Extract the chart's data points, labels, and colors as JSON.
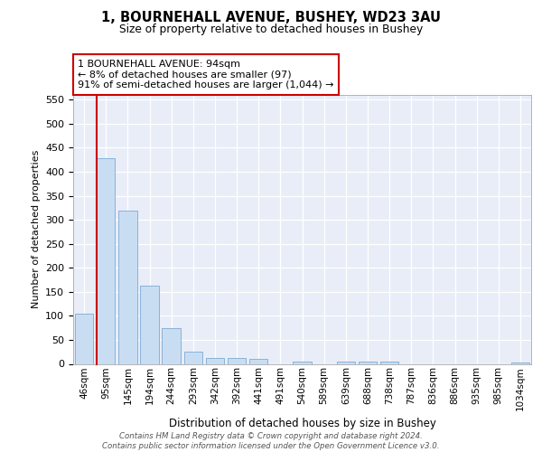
{
  "title_line1": "1, BOURNEHALL AVENUE, BUSHEY, WD23 3AU",
  "title_line2": "Size of property relative to detached houses in Bushey",
  "xlabel": "Distribution of detached houses by size in Bushey",
  "ylabel": "Number of detached properties",
  "categories": [
    "46sqm",
    "95sqm",
    "145sqm",
    "194sqm",
    "244sqm",
    "293sqm",
    "342sqm",
    "392sqm",
    "441sqm",
    "491sqm",
    "540sqm",
    "589sqm",
    "639sqm",
    "688sqm",
    "738sqm",
    "787sqm",
    "836sqm",
    "886sqm",
    "935sqm",
    "985sqm",
    "1034sqm"
  ],
  "values": [
    105,
    428,
    320,
    163,
    75,
    25,
    12,
    13,
    10,
    0,
    5,
    0,
    5,
    5,
    5,
    0,
    0,
    0,
    0,
    0,
    3
  ],
  "bar_color": "#c9ddf2",
  "bar_edge_color": "#7baad4",
  "highlight_bar_index": 1,
  "highlight_line_color": "#cc0000",
  "annotation_line1": "1 BOURNEHALL AVENUE: 94sqm",
  "annotation_line2": "← 8% of detached houses are smaller (97)",
  "annotation_line3": "91% of semi-detached houses are larger (1,044) →",
  "annotation_box_facecolor": "#ffffff",
  "annotation_box_edgecolor": "#cc0000",
  "ylim_max": 560,
  "yticks": [
    0,
    50,
    100,
    150,
    200,
    250,
    300,
    350,
    400,
    450,
    500,
    550
  ],
  "footer_line1": "Contains HM Land Registry data © Crown copyright and database right 2024.",
  "footer_line2": "Contains public sector information licensed under the Open Government Licence v3.0.",
  "plot_bg_color": "#e8edf8"
}
